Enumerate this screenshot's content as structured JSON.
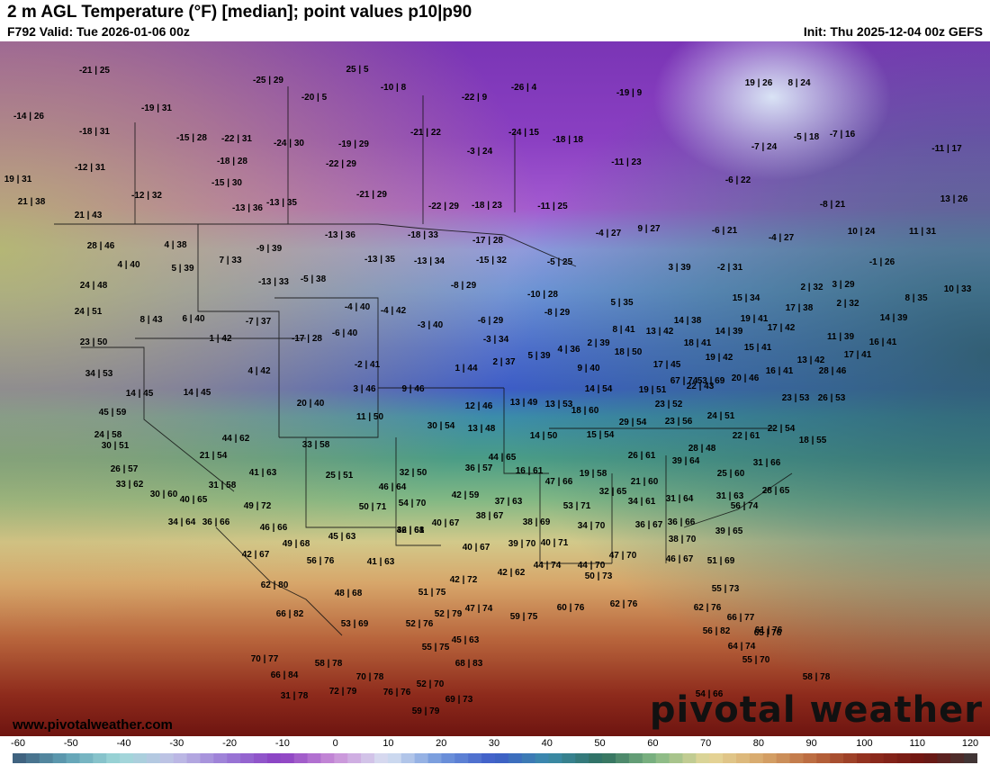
{
  "header": {
    "title": "2 m AGL Temperature (°F) [median]; point values p10|p90",
    "valid": "F792 Valid: Tue 2026-01-06 00z",
    "init": "Init: Thu 2025-12-04 00z GEFS"
  },
  "footer": {
    "website": "www.pivotalweather.com",
    "watermark": "pivotal weather"
  },
  "colorbar": {
    "ticks": [
      "-60",
      "-50",
      "-40",
      "-30",
      "-20",
      "-10",
      "0",
      "10",
      "20",
      "30",
      "40",
      "50",
      "60",
      "70",
      "80",
      "90",
      "100",
      "110",
      "120"
    ],
    "min": -60,
    "max": 120
  },
  "point_values": [
    "-21|25",
    "-25|29",
    "25|5",
    "-10|8",
    "-20|5",
    "-26|4",
    "-19|9",
    "19|26",
    "8|24",
    "-14|26",
    "-19|31",
    "-18|31",
    "-22|9",
    "-15|28",
    "-22|31",
    "-24|30",
    "-19|29",
    "-21|22",
    "-3|24",
    "-24|15",
    "-18|18",
    "-5|18",
    "-7|16",
    "-7|24",
    "-11|17",
    "-12|31",
    "-18|28",
    "-22|29",
    "-11|23",
    "-15|30",
    "19|31",
    "-12|32",
    "-21|29",
    "-6|22",
    "-13|36",
    "-13|35",
    "-22|29",
    "-18|23",
    "-11|25",
    "-8|21",
    "13|26",
    "21|38",
    "21|43",
    "28|46",
    "4|38",
    "-9|39",
    "-13|36",
    "-18|33",
    "-17|28",
    "-4|27",
    "9|27",
    "-6|21",
    "-4|27",
    "10|24",
    "11|31",
    "4|40",
    "5|39",
    "7|33",
    "-13|35",
    "-13|34",
    "-15|32",
    "-5|25",
    "-1|26",
    "24|48",
    "-13|33",
    "-5|38",
    "-8|29",
    "3|39",
    "-2|31",
    "2|32",
    "3|29",
    "10|33",
    "8|35",
    "24|51",
    "8|43",
    "6|40",
    "-4|40",
    "-4|42",
    "-10|28",
    "5|35",
    "15|34",
    "-7|37",
    "-8|29",
    "17|38",
    "2|32",
    "14|39",
    "23|50",
    "1|42",
    "-17|28",
    "-6|40",
    "-3|40",
    "-6|29",
    "8|41",
    "13|42",
    "14|38",
    "19|41",
    "17|42",
    "11|39",
    "16|41",
    "-3|34",
    "4|36",
    "2|39",
    "14|39",
    "18|41",
    "15|41",
    "34|53",
    "4|42",
    "-2|41",
    "1|44",
    "2|37",
    "5|39",
    "9|40",
    "18|50",
    "17|45",
    "19|42",
    "13|42",
    "17|41",
    "28|46",
    "14|45",
    "14|45",
    "3|46",
    "9|46",
    "14|54",
    "19|51",
    "22|43",
    "20|46",
    "16|41",
    "45|59",
    "20|40",
    "12|46",
    "13|49",
    "13|53",
    "23|52",
    "23|53",
    "26|53",
    "11|50",
    "18|60",
    "23|56",
    "24|51",
    "29|54",
    "24|58",
    "44|62",
    "30|54",
    "13|48",
    "14|50",
    "15|54",
    "22|61",
    "22|54",
    "30|51",
    "33|58",
    "44|65",
    "28|48",
    "18|55",
    "21|54",
    "36|57",
    "39|64",
    "26|61",
    "26|57",
    "41|63",
    "25|51",
    "32|50",
    "16|61",
    "19|58",
    "25|60",
    "31|66",
    "33|62",
    "31|58",
    "46|64",
    "47|66",
    "21|60",
    "28|65",
    "30|60",
    "40|65",
    "49|72",
    "50|71",
    "54|70",
    "42|59",
    "37|63",
    "32|65",
    "31|64",
    "31|63",
    "34|61",
    "34|64",
    "36|66",
    "53|71",
    "56|74",
    "32|68",
    "40|67",
    "38|67",
    "38|69",
    "34|70",
    "36|67",
    "36|66",
    "39|65",
    "46|66",
    "49|68",
    "45|63",
    "46|61",
    "40|67",
    "39|70",
    "40|71",
    "38|70",
    "42|67",
    "56|76",
    "41|63",
    "42|62",
    "44|74",
    "47|70",
    "46|67",
    "51|69",
    "42|72",
    "44|70",
    "50|73",
    "62|80",
    "48|68",
    "51|75",
    "55|73",
    "66|82",
    "53|69",
    "52|76",
    "52|79",
    "47|74",
    "59|75",
    "60|76",
    "62|76",
    "62|76",
    "66|77",
    "61|76",
    "55|75",
    "45|63",
    "56|82",
    "64|74",
    "70|77",
    "68|83",
    "58|78",
    "66|84",
    "65|76",
    "70|78",
    "52|70",
    "55|70",
    "58|78",
    "31|78",
    "72|79",
    "76|76",
    "69|73",
    "54|66",
    "59|79",
    "67|74",
    "53|69"
  ]
}
